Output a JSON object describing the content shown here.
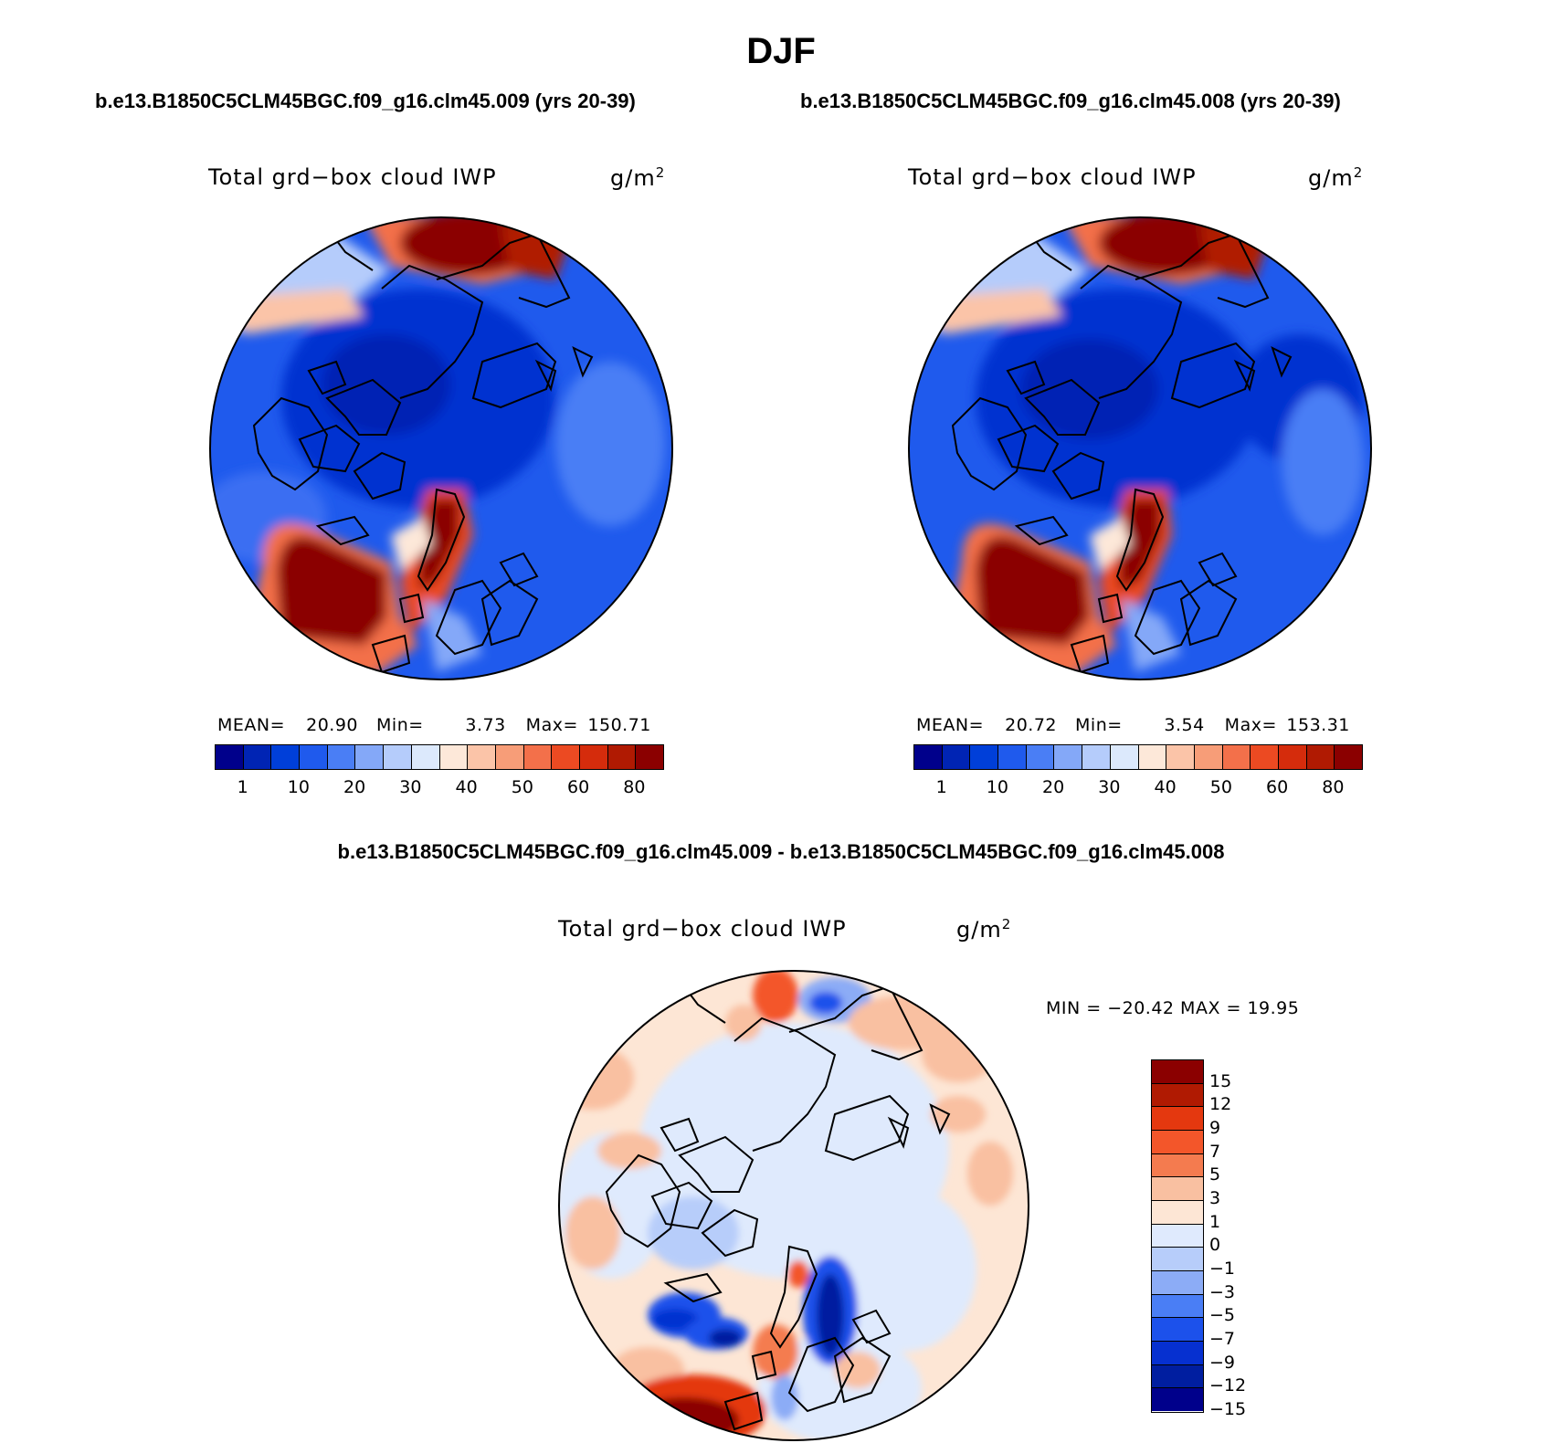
{
  "figure": {
    "season_title": "DJF",
    "case_left": "b.e13.B1850C5CLM45BGC.f09_g16.clm45.009 (yrs 20-39)",
    "case_right": "b.e13.B1850C5CLM45BGC.f09_g16.clm45.008 (yrs 20-39)",
    "diff_title": "b.e13.B1850C5CLM45BGC.f09_g16.clm45.009 - b.e13.B1850C5CLM45BGC.f09_g16.clm45.008"
  },
  "panels": {
    "left": {
      "variable": "Total grd−box cloud IWP",
      "units": "g/m",
      "units_sup": "2",
      "mean_label": "MEAN=",
      "mean_value": "20.90",
      "min_label": "Min=",
      "min_value": "3.73",
      "max_label": "Max=",
      "max_value": "150.71"
    },
    "right": {
      "variable": "Total grd−box cloud IWP",
      "units": "g/m",
      "units_sup": "2",
      "mean_label": "MEAN=",
      "mean_value": "20.72",
      "min_label": "Min=",
      "min_value": "3.54",
      "max_label": "Max=",
      "max_value": "153.31"
    },
    "diff": {
      "variable": "Total grd−box cloud IWP",
      "units": "g/m",
      "units_sup": "2",
      "minmax_text": "MIN = −20.42 MAX =   19.95"
    }
  },
  "colorbar_abs": {
    "colors": [
      "#00008b",
      "#0024b4",
      "#003fd9",
      "#1f5aed",
      "#4a7ef5",
      "#84a8f8",
      "#b5ccfb",
      "#dce9fc",
      "#fde8d9",
      "#fbc4a8",
      "#f79d78",
      "#f3704a",
      "#ec4a22",
      "#d52c0c",
      "#b01a02",
      "#8b0000"
    ],
    "tick_labels": [
      "1",
      "10",
      "20",
      "30",
      "40",
      "50",
      "60",
      "80"
    ]
  },
  "colorbar_diff": {
    "colors_top_to_bottom": [
      "#8b0000",
      "#b01a02",
      "#e4380f",
      "#f3562a",
      "#f47b4f",
      "#f9c0a1",
      "#fde6d5",
      "#dfeafd",
      "#b7cdfa",
      "#8cacf6",
      "#4a7ef5",
      "#1c51eb",
      "#0630d0",
      "#001ea0",
      "#00008b"
    ],
    "tick_labels": [
      "15",
      "12",
      "9",
      "7",
      "5",
      "3",
      "1",
      "0",
      "−1",
      "−3",
      "−5",
      "−7",
      "−9",
      "−12",
      "−15"
    ]
  },
  "chart_data": [
    {
      "type": "heatmap",
      "title": "Total grd−box cloud IWP",
      "units": "g/m2",
      "projection": "north polar stereographic",
      "case": "b.e13.B1850C5CLM45BGC.f09_g16.clm45.009 (yrs 20-39)",
      "mean": 20.9,
      "min": 3.73,
      "max": 150.71,
      "contour_levels": [
        1,
        5,
        10,
        15,
        20,
        25,
        30,
        35,
        40,
        45,
        50,
        55,
        60,
        70,
        80
      ]
    },
    {
      "type": "heatmap",
      "title": "Total grd−box cloud IWP",
      "units": "g/m2",
      "projection": "north polar stereographic",
      "case": "b.e13.B1850C5CLM45BGC.f09_g16.clm45.008 (yrs 20-39)",
      "mean": 20.72,
      "min": 3.54,
      "max": 153.31,
      "contour_levels": [
        1,
        5,
        10,
        15,
        20,
        25,
        30,
        35,
        40,
        45,
        50,
        55,
        60,
        70,
        80
      ]
    },
    {
      "type": "heatmap",
      "title": "Total grd−box cloud IWP",
      "units": "g/m2",
      "projection": "north polar stereographic",
      "case": "b.e13.B1850C5CLM45BGC.f09_g16.clm45.009 - b.e13.B1850C5CLM45BGC.f09_g16.clm45.008",
      "min": -20.42,
      "max": 19.95,
      "contour_levels": [
        -15,
        -12,
        -9,
        -7,
        -5,
        -3,
        -1,
        0,
        1,
        3,
        5,
        7,
        9,
        12,
        15
      ]
    }
  ]
}
